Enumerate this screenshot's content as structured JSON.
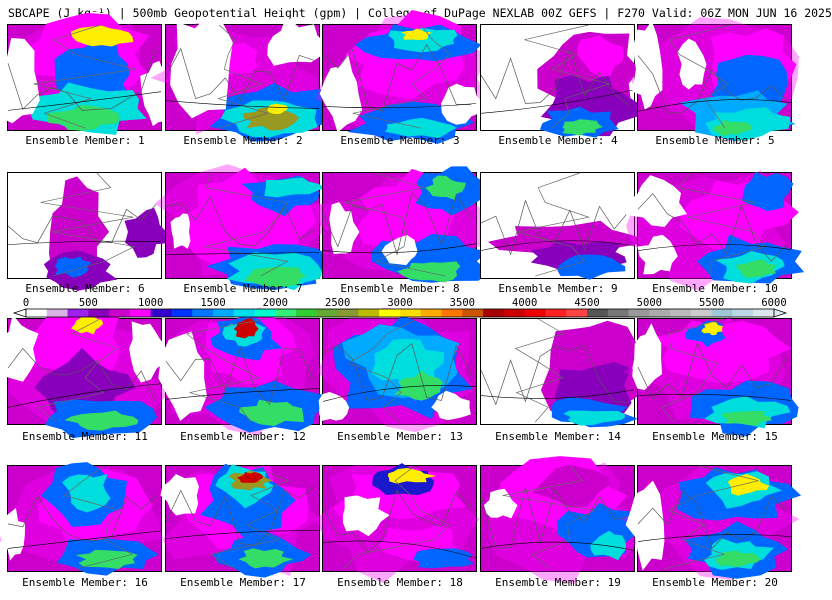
{
  "header": {
    "title": "SBCAPE (J kg⁻¹) | 500mb Geopotential Height (gpm) | College of DuPage NEXLAB 00Z GEFS | F270 Valid: 06Z MON JUN 16 2025"
  },
  "panels": [
    {
      "label": "Ensemble Member: 1"
    },
    {
      "label": "Ensemble Member: 2"
    },
    {
      "label": "Ensemble Member: 3"
    },
    {
      "label": "Ensemble Member: 4"
    },
    {
      "label": "Ensemble Member: 5"
    },
    {
      "label": "Ensemble Member: 6"
    },
    {
      "label": "Ensemble Member: 7"
    },
    {
      "label": "Ensemble Member: 8"
    },
    {
      "label": "Ensemble Member: 9"
    },
    {
      "label": "Ensemble Member: 10"
    },
    {
      "label": "Ensemble Member: 11"
    },
    {
      "label": "Ensemble Member: 12"
    },
    {
      "label": "Ensemble Member: 13"
    },
    {
      "label": "Ensemble Member: 14"
    },
    {
      "label": "Ensemble Member: 15"
    },
    {
      "label": "Ensemble Member: 16"
    },
    {
      "label": "Ensemble Member: 17"
    },
    {
      "label": "Ensemble Member: 18"
    },
    {
      "label": "Ensemble Member: 19"
    },
    {
      "label": "Ensemble Member: 20"
    }
  ],
  "colorbar": {
    "ticks": [
      "0",
      "500",
      "1000",
      "1500",
      "2000",
      "2500",
      "3000",
      "3500",
      "4000",
      "4500",
      "5000",
      "5500",
      "6000"
    ],
    "colors": [
      "#ffffff",
      "#d9b3e6",
      "#a020f0",
      "#8800bb",
      "#cc00cc",
      "#ff00ff",
      "#3300cc",
      "#0033ff",
      "#0077ff",
      "#00aaff",
      "#00ddee",
      "#00ffcc",
      "#33ee77",
      "#33cc33",
      "#66aa33",
      "#889933",
      "#bbbb00",
      "#ffff00",
      "#ffdd00",
      "#ffaa00",
      "#ff7700",
      "#cc5500",
      "#aa0000",
      "#cc0000",
      "#ee0000",
      "#ff2222",
      "#ff4444",
      "#555555",
      "#777777",
      "#999999",
      "#aaaaaa",
      "#bbbbbb",
      "#cccccc",
      "#9ec8d8",
      "#bcd8e4",
      "#dde8ee"
    ]
  }
}
